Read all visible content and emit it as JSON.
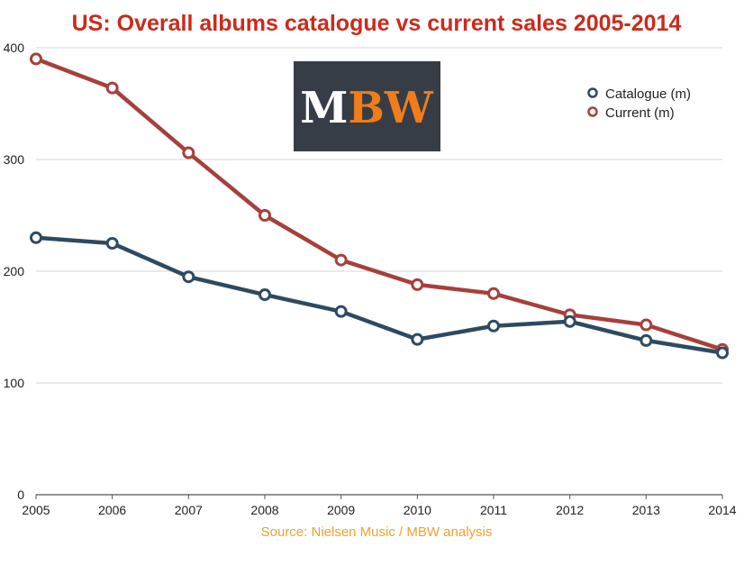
{
  "chart_data": {
    "type": "line",
    "title": "US: Overall albums catalogue vs current sales 2005-2014",
    "xlabel": "",
    "ylabel": "",
    "x": [
      "2005",
      "2006",
      "2007",
      "2008",
      "2009",
      "2010",
      "2011",
      "2012",
      "2013",
      "2014"
    ],
    "ylim": [
      0,
      400
    ],
    "yticks": [
      "0",
      "100",
      "200",
      "300",
      "400"
    ],
    "grid": true,
    "legend_position": "top-right",
    "series": [
      {
        "name": "Catalogue (m)",
        "color": "#2e4a62",
        "values": [
          230,
          225,
          195,
          179,
          164,
          139,
          151,
          155,
          138,
          127
        ]
      },
      {
        "name": "Current (m)",
        "color": "#a6403b",
        "values": [
          390,
          364,
          306,
          250,
          210,
          188,
          180,
          161,
          152,
          130
        ]
      }
    ],
    "source": "Source: Nielsen Music / MBW analysis"
  },
  "logo": {
    "text_light": "M",
    "text_accent": "BW",
    "background": "#363d47",
    "light_color": "#ffffff",
    "accent_color": "#f07d1a"
  },
  "colors": {
    "title": "#cc2a1b",
    "source": "#f0a030",
    "grid": "#d4d4d4"
  }
}
